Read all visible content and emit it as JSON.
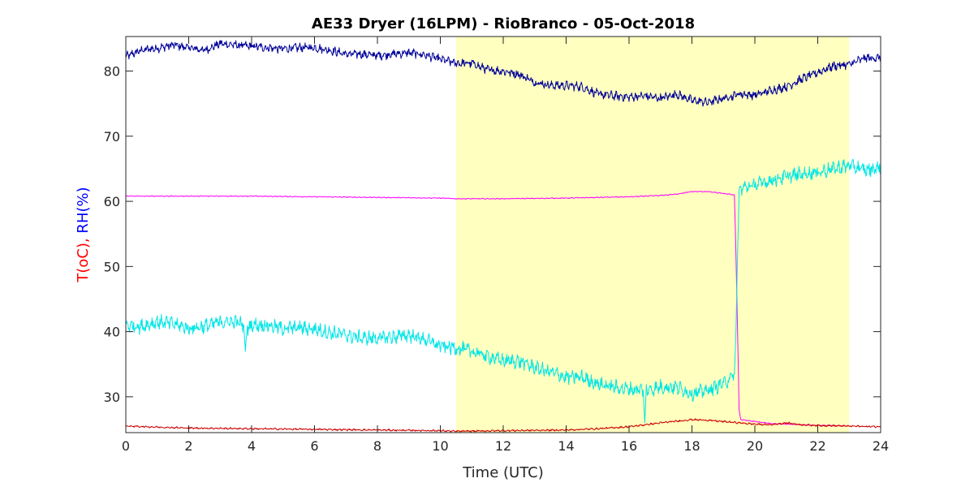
{
  "chart_data": {
    "type": "line",
    "title": "AE33 Dryer (16LPM)  - RioBranco - 05-Oct-2018",
    "xlabel": "Time (UTC)",
    "ylabel_parts": [
      {
        "text": "T(oC), ",
        "color": "#ff0000"
      },
      {
        "text": "RH(%)",
        "color": "#0000ff"
      }
    ],
    "xlim": [
      0,
      24
    ],
    "ylim": [
      24.5,
      85.3
    ],
    "xticks": [
      0,
      2,
      4,
      6,
      8,
      10,
      12,
      14,
      16,
      18,
      20,
      22,
      24
    ],
    "yticks": [
      30,
      40,
      50,
      60,
      70,
      80
    ],
    "grid": false,
    "highlight_span": {
      "x0": 10.5,
      "x1": 23.0,
      "color": "#ffffbf"
    },
    "series": [
      {
        "color": "#000099",
        "points": [
          [
            0,
            82.2
          ],
          [
            0.5,
            83.2
          ],
          [
            1,
            83.5
          ],
          [
            1.5,
            84.0
          ],
          [
            2,
            83.6
          ],
          [
            2.5,
            83.2
          ],
          [
            3,
            84.2
          ],
          [
            3.5,
            84.0
          ],
          [
            4,
            83.8
          ],
          [
            4.5,
            83.6
          ],
          [
            5,
            83.4
          ],
          [
            5.5,
            83.6
          ],
          [
            6,
            83.6
          ],
          [
            6.5,
            83.2
          ],
          [
            7,
            82.6
          ],
          [
            7.5,
            82.6
          ],
          [
            8,
            82.4
          ],
          [
            8.5,
            82.6
          ],
          [
            9,
            82.8
          ],
          [
            9.5,
            82.5
          ],
          [
            10,
            81.8
          ],
          [
            10.5,
            81.2
          ],
          [
            11,
            81.2
          ],
          [
            11.5,
            80.2
          ],
          [
            12,
            80.0
          ],
          [
            12.5,
            79.5
          ],
          [
            13,
            78.3
          ],
          [
            13.5,
            77.8
          ],
          [
            14,
            77.8
          ],
          [
            14.5,
            77.6
          ],
          [
            15,
            76.5
          ],
          [
            15.5,
            76.2
          ],
          [
            16,
            76.0
          ],
          [
            16.5,
            76.2
          ],
          [
            17,
            75.8
          ],
          [
            17.5,
            76.5
          ],
          [
            18,
            75.5
          ],
          [
            18.5,
            75.2
          ],
          [
            19,
            75.8
          ],
          [
            19.5,
            76.5
          ],
          [
            20,
            76.3
          ],
          [
            20.5,
            77.0
          ],
          [
            21,
            77.6
          ],
          [
            21.5,
            78.8
          ],
          [
            22,
            79.8
          ],
          [
            22.5,
            80.8
          ],
          [
            23,
            81.0
          ],
          [
            23.5,
            82.0
          ],
          [
            24,
            82.0
          ]
        ],
        "noise": 0.5
      },
      {
        "color": "#ff00ff",
        "points": [
          [
            0,
            60.8
          ],
          [
            2,
            60.8
          ],
          [
            4,
            60.8
          ],
          [
            6,
            60.7
          ],
          [
            8,
            60.6
          ],
          [
            10,
            60.5
          ],
          [
            10.5,
            60.4
          ],
          [
            12,
            60.4
          ],
          [
            14,
            60.5
          ],
          [
            16,
            60.7
          ],
          [
            17,
            60.9
          ],
          [
            17.5,
            61.1
          ],
          [
            18,
            61.5
          ],
          [
            18.5,
            61.5
          ],
          [
            19.0,
            61.2
          ],
          [
            19.35,
            61.0
          ],
          [
            19.4,
            52
          ],
          [
            19.45,
            40
          ],
          [
            19.5,
            28
          ],
          [
            19.55,
            26.5
          ],
          [
            20,
            26.2
          ],
          [
            20.5,
            25.9
          ],
          [
            21,
            25.8
          ],
          [
            21.5,
            25.7
          ],
          [
            22,
            25.6
          ],
          [
            22.5,
            25.6
          ],
          [
            23,
            25.5
          ]
        ],
        "noise": 0.05
      },
      {
        "color": "#00e6e6",
        "points": [
          [
            0,
            41.0
          ],
          [
            0.5,
            40.8
          ],
          [
            1,
            41.5
          ],
          [
            1.5,
            41.2
          ],
          [
            2,
            40.5
          ],
          [
            2.5,
            40.8
          ],
          [
            3,
            41.5
          ],
          [
            3.5,
            41.5
          ],
          [
            3.75,
            41.0
          ],
          [
            3.8,
            37.0
          ],
          [
            3.85,
            40.5
          ],
          [
            4,
            41.0
          ],
          [
            4.5,
            41.0
          ],
          [
            5,
            40.5
          ],
          [
            5.5,
            40.6
          ],
          [
            6,
            40.4
          ],
          [
            6.5,
            39.8
          ],
          [
            7,
            39.5
          ],
          [
            7.5,
            39.0
          ],
          [
            8,
            39.0
          ],
          [
            8.5,
            39.2
          ],
          [
            9,
            39.5
          ],
          [
            9.5,
            38.8
          ],
          [
            10,
            37.8
          ],
          [
            10.5,
            37.5
          ],
          [
            11,
            37.0
          ],
          [
            11.5,
            36.2
          ],
          [
            12,
            35.5
          ],
          [
            12.5,
            35.5
          ],
          [
            13,
            34.5
          ],
          [
            13.5,
            33.8
          ],
          [
            14,
            33.0
          ],
          [
            14.5,
            33.0
          ],
          [
            15,
            32.0
          ],
          [
            15.5,
            31.5
          ],
          [
            16,
            31.2
          ],
          [
            16.45,
            31.0
          ],
          [
            16.5,
            26.0
          ],
          [
            16.55,
            31.0
          ],
          [
            17,
            31.5
          ],
          [
            17.5,
            31.5
          ],
          [
            18,
            30.5
          ],
          [
            18.5,
            31.0
          ],
          [
            19,
            32.0
          ],
          [
            19.35,
            33.5
          ],
          [
            19.4,
            40
          ],
          [
            19.45,
            52
          ],
          [
            19.5,
            61.0
          ],
          [
            19.55,
            62.0
          ],
          [
            20,
            62.5
          ],
          [
            20.5,
            63.2
          ],
          [
            21,
            63.8
          ],
          [
            21.5,
            64.2
          ],
          [
            22,
            64.5
          ],
          [
            22.5,
            65.0
          ],
          [
            23,
            65.5
          ],
          [
            23.5,
            64.8
          ],
          [
            24,
            65.2
          ]
        ],
        "noise": 0.8
      },
      {
        "color": "#cc0000",
        "points": [
          [
            0,
            25.5
          ],
          [
            2,
            25.2
          ],
          [
            4,
            25.1
          ],
          [
            6,
            25.0
          ],
          [
            8,
            24.9
          ],
          [
            10,
            24.8
          ],
          [
            10.5,
            24.7
          ],
          [
            12,
            24.8
          ],
          [
            14,
            24.9
          ],
          [
            15,
            25.1
          ],
          [
            16,
            25.4
          ],
          [
            17,
            26.0
          ],
          [
            18,
            26.5
          ],
          [
            18.5,
            26.4
          ],
          [
            19,
            26.2
          ],
          [
            19.5,
            26.0
          ],
          [
            20,
            25.8
          ],
          [
            20.5,
            25.7
          ],
          [
            21,
            26.0
          ],
          [
            21.5,
            25.7
          ],
          [
            22,
            25.6
          ],
          [
            23,
            25.5
          ],
          [
            24,
            25.4
          ]
        ],
        "noise": 0.1
      }
    ]
  }
}
